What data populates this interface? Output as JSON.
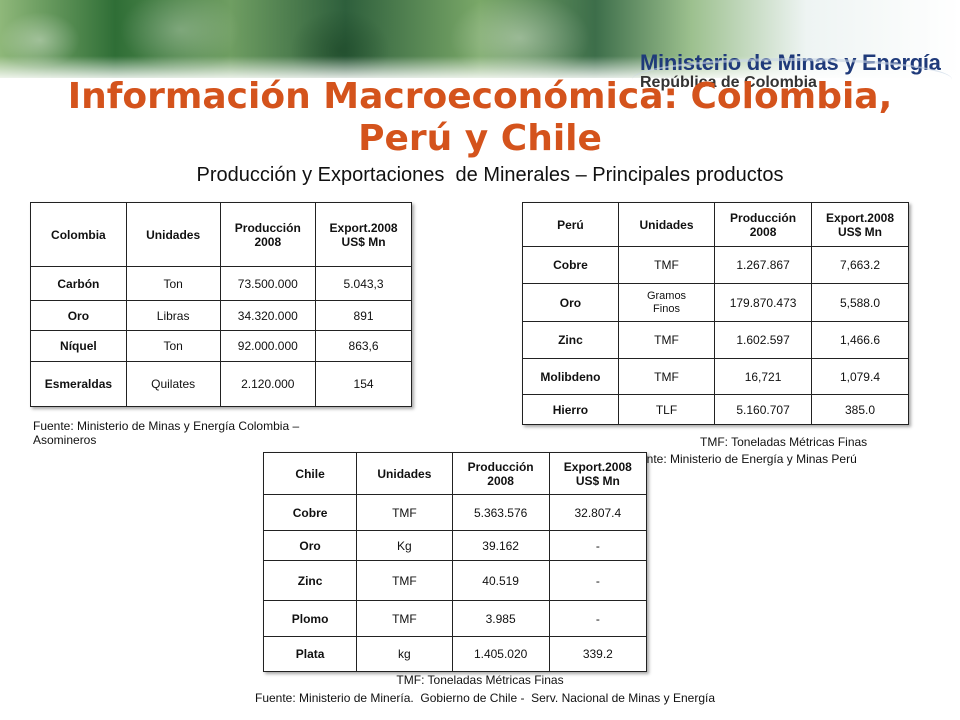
{
  "header": {
    "ministry_name": "Ministerio de Minas y Energía",
    "country": "República de Colombia"
  },
  "title_line1": "Información Macroeconómica: Colombia,",
  "title_line2": "Perú y Chile",
  "subtitle": "Producción y Exportaciones  de Minerales – Principales productos",
  "colombia": {
    "headers": [
      "Colombia",
      "Unidades",
      "Producción 2008",
      "Export.2008 US$ Mn"
    ],
    "rows": [
      [
        "Carbón",
        "Ton",
        "73.500.000",
        "5.043,3"
      ],
      [
        "Oro",
        "Libras",
        "34.320.000",
        "891"
      ],
      [
        "Níquel",
        "Ton",
        "92.000.000",
        "863,6"
      ],
      [
        "Esmeraldas",
        "Quilates",
        "2.120.000",
        "154"
      ]
    ],
    "source": "Fuente: Ministerio de Minas y Energía Colombia – Asomineros"
  },
  "peru": {
    "headers": [
      "Perú",
      "Unidades",
      "Producción 2008",
      "Export.2008 US$ Mn"
    ],
    "rows": [
      [
        "Cobre",
        "TMF",
        "1.267.867",
        "7,663.2"
      ],
      [
        "Oro",
        "Gramos Finos",
        "179.870.473",
        "5,588.0"
      ],
      [
        "Zinc",
        "TMF",
        "1.602.597",
        "1,466.6"
      ],
      [
        "Molibdeno",
        "TMF",
        "16,721",
        "1,079.4"
      ],
      [
        "Hierro",
        "TLF",
        "5.160.707",
        "385.0"
      ]
    ],
    "tmf_note": "TMF: Toneladas Métricas Finas",
    "source": "ente: Ministerio de Energía y Minas  Perú"
  },
  "chile": {
    "headers": [
      "Chile",
      "Unidades",
      "Producción 2008",
      "Export.2008 US$ Mn"
    ],
    "rows": [
      [
        "Cobre",
        "TMF",
        "5.363.576",
        "32.807.4"
      ],
      [
        "Oro",
        "Kg",
        "39.162",
        "-"
      ],
      [
        "Zinc",
        "TMF",
        "40.519",
        "-"
      ],
      [
        "Plomo",
        "TMF",
        "3.985",
        "-"
      ],
      [
        "Plata",
        "kg",
        "1.405.020",
        "339.2"
      ]
    ],
    "tmf_note": "TMF: Toneladas Métricas Finas",
    "source": "Fuente: Ministerio de Minería.  Gobierno de Chile -  Serv. Nacional de Minas y Energía"
  }
}
